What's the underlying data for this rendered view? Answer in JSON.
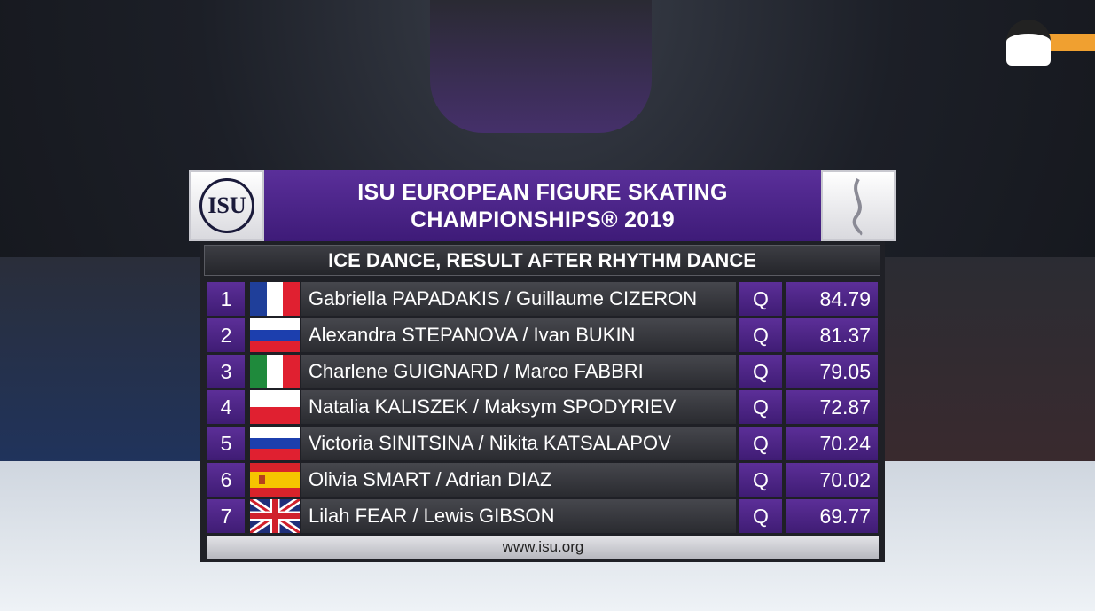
{
  "header": {
    "logo": "ISU",
    "title_lines": [
      "ISU EUROPEAN FIGURE SKATING",
      "CHAMPIONSHIPS® 2019"
    ]
  },
  "subtitle": "ICE DANCE, RESULT AFTER RHYTHM DANCE",
  "results": [
    {
      "rank": 1,
      "name": "Gabriella PAPADAKIS / Guillaume CIZERON",
      "status": "Q",
      "score": 84.79
    },
    {
      "rank": 2,
      "name": "Alexandra STEPANOVA / Ivan BUKIN",
      "status": "Q",
      "score": 81.37
    },
    {
      "rank": 3,
      "name": "Charlene GUIGNARD / Marco FABBRI",
      "status": "Q",
      "score": 79.05
    },
    {
      "rank": 4,
      "name": "Natalia KALISZEK / Maksym SPODYRIEV",
      "status": "Q",
      "score": 72.87
    },
    {
      "rank": 5,
      "name": "Victoria SINITSINA / Nikita KATSALAPOV",
      "status": "Q",
      "score": 70.24
    },
    {
      "rank": 6,
      "name": "Olivia SMART / Adrian DIAZ",
      "status": "Q",
      "score": 70.02
    },
    {
      "rank": 7,
      "name": "Lilah FEAR / Lewis GIBSON",
      "status": "Q",
      "score": 69.77
    }
  ],
  "footer": "www.isu.org"
}
